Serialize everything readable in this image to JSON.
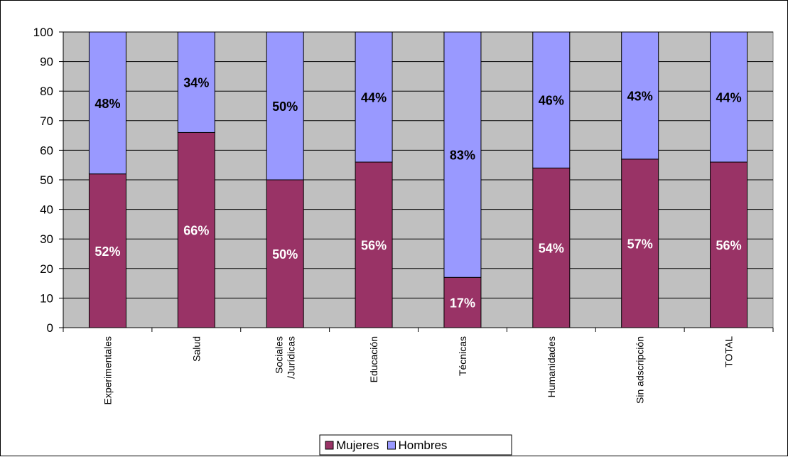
{
  "chart_data": {
    "type": "bar",
    "stacked": true,
    "categories": [
      "Experimentales",
      "Salud",
      "Sociales /Jurídicas",
      "Educación",
      "Técnicas",
      "Humanidades",
      "Sin adscripción",
      "TOTAL"
    ],
    "category_lines": [
      [
        "Experimentales"
      ],
      [
        "Salud"
      ],
      [
        "Sociales",
        "/Jurídicas"
      ],
      [
        "Educación"
      ],
      [
        "Técnicas"
      ],
      [
        "Humanidades"
      ],
      [
        "Sin adscripción"
      ],
      [
        "TOTAL"
      ]
    ],
    "series": [
      {
        "name": "Mujeres",
        "values": [
          52,
          66,
          50,
          56,
          17,
          54,
          57,
          56
        ],
        "labels": [
          "52%",
          "66%",
          "50%",
          "56%",
          "17%",
          "54%",
          "57%",
          "56%"
        ],
        "color": "#993366",
        "label_color": "#ffffff"
      },
      {
        "name": "Hombres",
        "values": [
          48,
          34,
          50,
          44,
          83,
          46,
          43,
          44
        ],
        "labels": [
          "48%",
          "34%",
          "50%",
          "44%",
          "83%",
          "46%",
          "43%",
          "44%"
        ],
        "color": "#9999ff",
        "label_color": "#000000"
      }
    ],
    "ylim": [
      0,
      100
    ],
    "yticks": [
      0,
      10,
      20,
      30,
      40,
      50,
      60,
      70,
      80,
      90,
      100
    ],
    "grid": true,
    "plot_background": "#c0c0c0",
    "legend_position": "bottom"
  }
}
